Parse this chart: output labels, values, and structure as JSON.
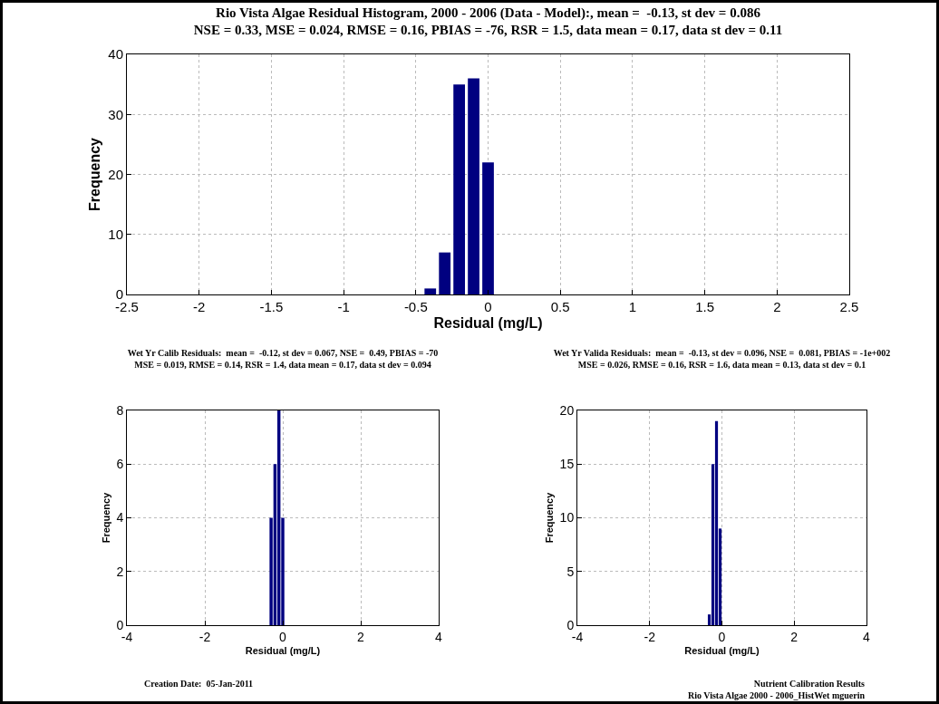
{
  "chart_data": [
    {
      "type": "histogram",
      "title": "Rio Vista Algae Residual Histogram, 2000 - 2006 (Data - Model):, mean =  -0.13, st dev = 0.086\nNSE = 0.33, MSE = 0.024, RMSE = 0.16, PBIAS = -76, RSR = 1.5, data mean = 0.17, data st dev = 0.11",
      "xlabel": "Residual (mg/L)",
      "ylabel": "Frequency",
      "bins": [
        -0.45,
        -0.35,
        -0.25,
        -0.15,
        -0.05,
        0.05
      ],
      "values": [
        1,
        7,
        35,
        36,
        22
      ],
      "color": "#000080",
      "xlim": [
        -2.5,
        2.5
      ],
      "xticks": [
        -2.5,
        -2,
        -1.5,
        -1,
        -0.5,
        0,
        0.5,
        1,
        1.5,
        2,
        2.5
      ],
      "ylim": [
        0,
        40
      ],
      "yticks": [
        0,
        10,
        20,
        30,
        40
      ],
      "grid": true
    },
    {
      "type": "histogram",
      "title": "Wet Yr Calib Residuals:  mean =  -0.12, st dev = 0.067, NSE =  0.49, PBIAS = -70\nMSE = 0.019, RMSE = 0.14, RSR = 1.4, data mean = 0.17, data st dev = 0.094",
      "xlabel": "Residual (mg/L)",
      "ylabel": "Frequency",
      "bins": [
        -0.35,
        -0.25,
        -0.15,
        -0.05,
        0.05
      ],
      "values": [
        4,
        6,
        8,
        4
      ],
      "color": "#000080",
      "xlim": [
        -4,
        4
      ],
      "xticks": [
        -4,
        -2,
        0,
        2,
        4
      ],
      "ylim": [
        0,
        8
      ],
      "yticks": [
        0,
        2,
        4,
        6,
        8
      ],
      "grid": true,
      "annotations": [
        "Creation Date:  05-Jan-2011"
      ]
    },
    {
      "type": "histogram",
      "title": "Wet Yr Valida Residuals:  mean =  -0.13, st dev = 0.096, NSE =  0.081, PBIAS = -1e+002\nMSE = 0.026, RMSE = 0.16, RSR = 1.6, data mean = 0.13, data st dev = 0.1",
      "xlabel": "Residual (mg/L)",
      "ylabel": "Frequency",
      "bins": [
        -0.4,
        -0.3,
        -0.2,
        -0.1,
        0
      ],
      "values": [
        1,
        15,
        19,
        9
      ],
      "color": "#000080",
      "xlim": [
        -4,
        4
      ],
      "xticks": [
        -4,
        -2,
        0,
        2,
        4
      ],
      "ylim": [
        0,
        20
      ],
      "yticks": [
        0,
        5,
        10,
        15,
        20
      ],
      "grid": true,
      "annotations": [
        "Nutrient Calibration Results\nRio Vista Algae 2000 - 2006_HistWet mguerin"
      ]
    }
  ]
}
